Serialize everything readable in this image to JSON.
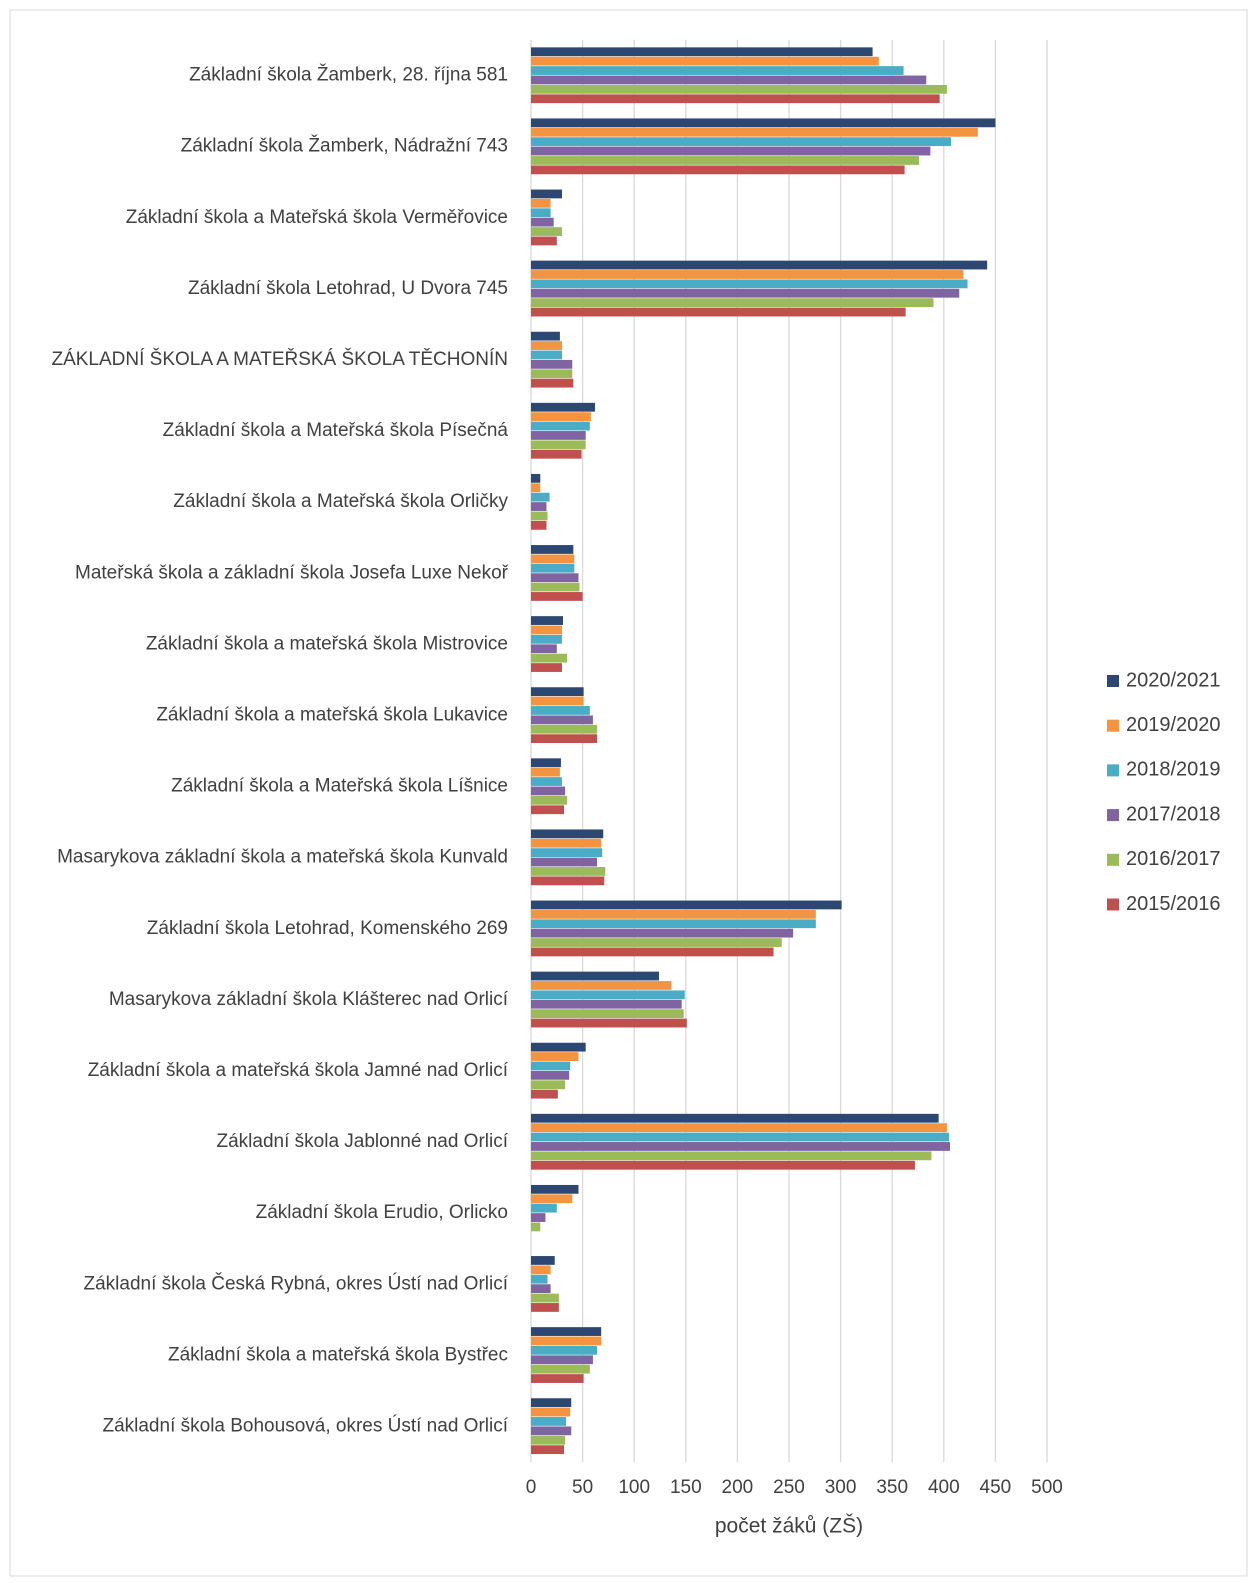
{
  "chart_data": {
    "type": "barh",
    "x_label": "počet žáků (ZŠ)",
    "categories": [
      "Základní škola Žamberk, 28. října 581",
      "Základní škola Žamberk, Nádražní 743",
      "Základní škola a Mateřská škola Verměřovice",
      "Základní škola Letohrad, U Dvora 745",
      "ZÁKLADNÍ ŠKOLA A MATEŘSKÁ ŠKOLA TĚCHONÍN",
      "Základní škola a Mateřská škola Písečná",
      "Základní škola a Mateřská škola Orličky",
      "Mateřská škola a základní škola Josefa Luxe Nekoř",
      "Základní škola a mateřská škola Mistrovice",
      "Základní škola a mateřská škola Lukavice",
      "Základní škola a Mateřská škola Líšnice",
      "Masarykova základní škola a mateřská škola Kunvald",
      "Základní škola Letohrad, Komenského 269",
      "Masarykova základní škola Klášterec nad Orlicí",
      "Základní škola a mateřská škola Jamné nad Orlicí",
      "Základní škola Jablonné nad Orlicí",
      "Základní škola Erudio, Orlicko",
      "Základní škola Česká Rybná, okres Ústí nad Orlicí",
      "Základní škola a mateřská škola Bystřec",
      "Základní škola Bohousová, okres Ústí nad Orlicí"
    ],
    "series": [
      {
        "name": "2020/2021",
        "color": "#2c4872",
        "values": [
          331,
          450,
          30,
          442,
          28,
          62,
          9,
          41,
          31,
          51,
          29,
          70,
          301,
          124,
          53,
          395,
          46,
          23,
          68,
          39
        ]
      },
      {
        "name": "2019/2020",
        "color": "#f59440",
        "values": [
          337,
          433,
          19,
          419,
          30,
          58,
          9,
          42,
          30,
          51,
          28,
          68,
          276,
          136,
          46,
          403,
          40,
          19,
          68,
          38
        ]
      },
      {
        "name": "2018/2019",
        "color": "#4aacc5",
        "values": [
          361,
          407,
          19,
          423,
          30,
          57,
          18,
          42,
          30,
          57,
          30,
          69,
          276,
          149,
          38,
          405,
          25,
          16,
          64,
          34
        ]
      },
      {
        "name": "2017/2018",
        "color": "#8064a2",
        "values": [
          383,
          387,
          22,
          415,
          40,
          53,
          15,
          46,
          25,
          60,
          33,
          64,
          254,
          146,
          37,
          406,
          14,
          19,
          60,
          39
        ]
      },
      {
        "name": "2016/2017",
        "color": "#9bbb59",
        "values": [
          403,
          376,
          30,
          390,
          40,
          53,
          16,
          47,
          35,
          64,
          35,
          72,
          243,
          148,
          33,
          388,
          9,
          27,
          57,
          33
        ]
      },
      {
        "name": "2015/2016",
        "color": "#c0504d",
        "values": [
          396,
          362,
          25,
          363,
          41,
          49,
          15,
          50,
          30,
          64,
          32,
          71,
          235,
          151,
          26,
          372,
          null,
          27,
          51,
          32
        ]
      }
    ],
    "xlim": [
      0,
      500
    ],
    "xticks": [
      0,
      50,
      100,
      150,
      200,
      250,
      300,
      350,
      400,
      450,
      500
    ],
    "grid": true,
    "legend": "right"
  }
}
